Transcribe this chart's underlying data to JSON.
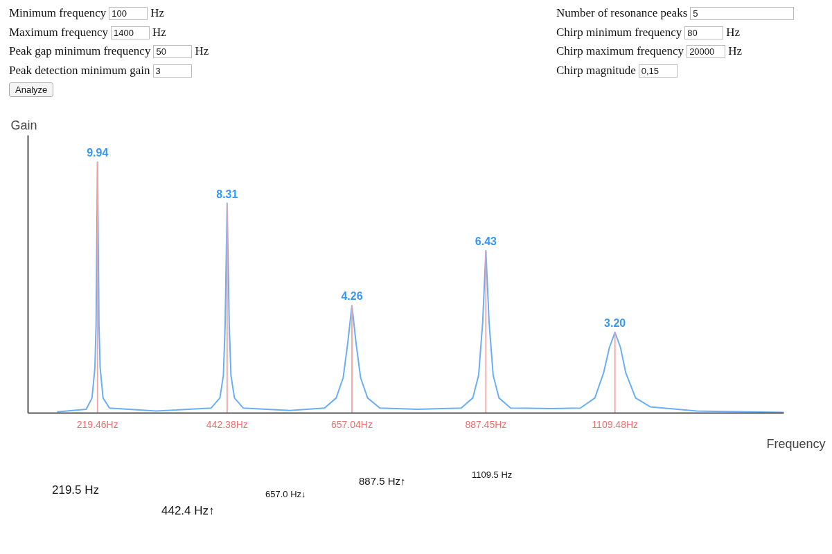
{
  "chart_data": {
    "type": "line",
    "xlabel": "Frequency",
    "ylabel": "Gain",
    "xlim": [
      100,
      1400
    ],
    "ylim": [
      0,
      11
    ],
    "xticks": [
      {
        "value": 219.46,
        "label": "219.46Hz"
      },
      {
        "value": 442.38,
        "label": "442.38Hz"
      },
      {
        "value": 657.04,
        "label": "657.04Hz"
      },
      {
        "value": 887.45,
        "label": "887.45Hz"
      },
      {
        "value": 1109.48,
        "label": "1109.48Hz"
      }
    ],
    "tick_labels": "x",
    "series": [
      {
        "color": "#6aaef5",
        "x": [
          150,
          200,
          210,
          215,
          217,
          219.46,
          222,
          224,
          229,
          240,
          320,
          415,
          430,
          436,
          439,
          442.38,
          446,
          449,
          455,
          470,
          550,
          610,
          630,
          642,
          650,
          657.04,
          664,
          672,
          684,
          705,
          770,
          845,
          865,
          875,
          882,
          887.45,
          893,
          900,
          910,
          930,
          1000,
          1050,
          1075,
          1090,
          1100,
          1109.48,
          1119,
          1128,
          1145,
          1170,
          1250,
          1400
        ],
        "values": [
          0.05,
          0.15,
          0.6,
          1.8,
          3.5,
          9.94,
          3.5,
          1.8,
          0.6,
          0.2,
          0.08,
          0.2,
          0.6,
          1.5,
          3.5,
          8.31,
          3.5,
          1.5,
          0.6,
          0.2,
          0.1,
          0.2,
          0.6,
          1.4,
          2.8,
          4.26,
          2.8,
          1.4,
          0.6,
          0.2,
          0.15,
          0.2,
          0.6,
          1.5,
          3.6,
          6.43,
          3.6,
          1.5,
          0.6,
          0.2,
          0.18,
          0.2,
          0.6,
          1.6,
          2.6,
          3.2,
          2.6,
          1.6,
          0.6,
          0.25,
          0.08,
          0.03
        ]
      },
      {
        "type": "bar",
        "color": "#f4a3a3",
        "x": [
          219.46,
          442.38,
          657.04,
          887.45,
          1109.48
        ],
        "values": [
          9.94,
          8.31,
          4.26,
          6.43,
          3.2
        ],
        "value_labels": [
          "9.94",
          "8.31",
          "4.26",
          "6.43",
          "3.20"
        ]
      }
    ],
    "annotations": [
      "Minimum frequency",
      "100",
      "Hz",
      "Maximum frequency",
      "1400",
      "Hz",
      "Peak gap minimum frequency",
      "50",
      "Hz",
      "Peak detection minimum gain",
      "3",
      "Analyze",
      "Number of resonance peaks",
      "5",
      "Chirp minimum frequency",
      "80",
      "Hz",
      "Chirp maximum frequency",
      "20000",
      "Hz",
      "Chirp magnitude",
      "0,15",
      "219.5 Hz",
      "442.4 Hz↑",
      "657.0 Hz↓",
      "887.5 Hz↑",
      "1109.5 Hz"
    ]
  }
}
